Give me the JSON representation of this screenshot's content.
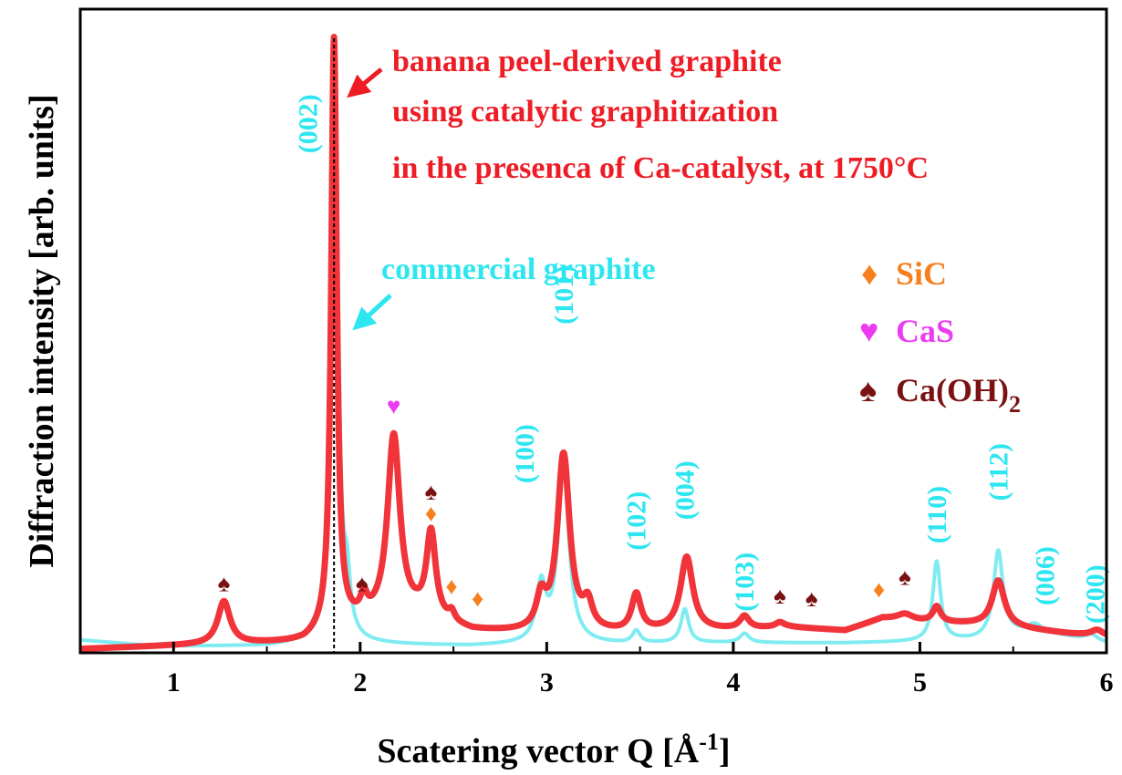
{
  "chart_data": {
    "type": "line",
    "xlabel": "Scatering vector Q [Å",
    "xlabel_sup": "-1",
    "xlabel_end": "]",
    "ylabel": "Diffraction intensity [arb. units]",
    "xlim": [
      0.5,
      6.0
    ],
    "ylim": [
      0,
      1.0
    ],
    "x_ticks": [
      "1",
      "2",
      "3",
      "4",
      "5",
      "6"
    ],
    "x_tick_values": [
      1,
      2,
      3,
      4,
      5,
      6
    ],
    "y_tick_labels": "none",
    "grid": false,
    "series": [
      {
        "name": "banana peel-derived graphite",
        "color": "#f0343a",
        "baseline": [
          [
            0.5,
            0.0
          ],
          [
            1.0,
            0.005
          ],
          [
            1.7,
            0.01
          ],
          [
            1.9,
            0.03
          ],
          [
            2.0,
            0.04
          ],
          [
            2.3,
            0.05
          ],
          [
            2.6,
            0.028
          ],
          [
            2.9,
            0.025
          ],
          [
            3.4,
            0.025
          ],
          [
            3.6,
            0.028
          ],
          [
            3.9,
            0.03
          ],
          [
            4.3,
            0.035
          ],
          [
            4.6,
            0.03
          ],
          [
            4.8,
            0.05
          ],
          [
            5.0,
            0.045
          ],
          [
            5.3,
            0.04
          ],
          [
            5.5,
            0.035
          ],
          [
            5.8,
            0.025
          ],
          [
            6.0,
            0.02
          ]
        ],
        "peaks": [
          {
            "x": 1.27,
            "height": 0.07,
            "width": 0.04
          },
          {
            "x": 1.86,
            "height": 0.97,
            "width": 0.018
          },
          {
            "x": 2.02,
            "height": 0.03,
            "width": 0.02
          },
          {
            "x": 2.18,
            "height": 0.3,
            "width": 0.04
          },
          {
            "x": 2.38,
            "height": 0.14,
            "width": 0.03
          },
          {
            "x": 2.49,
            "height": 0.015,
            "width": 0.02
          },
          {
            "x": 2.97,
            "height": 0.05,
            "width": 0.03
          },
          {
            "x": 3.09,
            "height": 0.29,
            "width": 0.04
          },
          {
            "x": 3.22,
            "height": 0.04,
            "width": 0.03
          },
          {
            "x": 3.48,
            "height": 0.06,
            "width": 0.03
          },
          {
            "x": 3.75,
            "height": 0.12,
            "width": 0.04
          },
          {
            "x": 4.06,
            "height": 0.02,
            "width": 0.03
          },
          {
            "x": 4.25,
            "height": 0.008,
            "width": 0.03
          },
          {
            "x": 4.92,
            "height": 0.01,
            "width": 0.05
          },
          {
            "x": 5.09,
            "height": 0.025,
            "width": 0.025
          },
          {
            "x": 5.42,
            "height": 0.075,
            "width": 0.04
          },
          {
            "x": 5.95,
            "height": 0.01,
            "width": 0.04
          }
        ]
      },
      {
        "name": "commercial graphite",
        "color": "#7fecf2",
        "baseline": [
          [
            0.5,
            0.015
          ],
          [
            0.9,
            0.005
          ],
          [
            1.5,
            0.005
          ],
          [
            1.7,
            0.01
          ],
          [
            2.0,
            0.008
          ],
          [
            2.6,
            0.005
          ],
          [
            3.0,
            0.008
          ],
          [
            3.4,
            0.008
          ],
          [
            3.8,
            0.01
          ],
          [
            4.2,
            0.01
          ],
          [
            4.6,
            0.01
          ],
          [
            5.0,
            0.012
          ],
          [
            5.3,
            0.015
          ],
          [
            5.6,
            0.03
          ],
          [
            5.8,
            0.02
          ],
          [
            6.0,
            0.01
          ]
        ],
        "peaks": [
          {
            "x": 1.865,
            "height": 0.97,
            "width": 0.02
          },
          {
            "x": 1.93,
            "height": 0.08,
            "width": 0.02
          },
          {
            "x": 2.97,
            "height": 0.09,
            "width": 0.03
          },
          {
            "x": 3.09,
            "height": 0.29,
            "width": 0.035
          },
          {
            "x": 3.48,
            "height": 0.02,
            "width": 0.025
          },
          {
            "x": 3.74,
            "height": 0.055,
            "width": 0.025
          },
          {
            "x": 4.06,
            "height": 0.015,
            "width": 0.03
          },
          {
            "x": 5.09,
            "height": 0.13,
            "width": 0.025
          },
          {
            "x": 5.42,
            "height": 0.14,
            "width": 0.03
          },
          {
            "x": 5.62,
            "height": 0.01,
            "width": 0.04
          },
          {
            "x": 5.92,
            "height": 0.01,
            "width": 0.04
          }
        ]
      }
    ],
    "reference_line_x": 1.86,
    "hkl_labels": [
      {
        "text": "(002)",
        "x": 1.72,
        "y": 0.86
      },
      {
        "text": "(100)",
        "x": 2.88,
        "y": 0.32
      },
      {
        "text": "(101)",
        "x": 3.09,
        "y": 0.58
      },
      {
        "text": "(102)",
        "x": 3.48,
        "y": 0.21
      },
      {
        "text": "(004)",
        "x": 3.74,
        "y": 0.26
      },
      {
        "text": "(103)",
        "x": 4.06,
        "y": 0.11
      },
      {
        "text": "(110)",
        "x": 5.09,
        "y": 0.22
      },
      {
        "text": "(112)",
        "x": 5.42,
        "y": 0.29
      },
      {
        "text": "(006)",
        "x": 5.67,
        "y": 0.12
      },
      {
        "text": "(200)",
        "x": 5.94,
        "y": 0.09
      }
    ],
    "phase_markers": [
      {
        "phase": "Ca(OH)2",
        "x": 1.27,
        "y": 0.095
      },
      {
        "phase": "Ca(OH)2",
        "x": 2.01,
        "y": 0.095
      },
      {
        "phase": "Ca(OH)2",
        "x": 2.38,
        "y": 0.245
      },
      {
        "phase": "Ca(OH)2",
        "x": 4.25,
        "y": 0.075
      },
      {
        "phase": "Ca(OH)2",
        "x": 4.42,
        "y": 0.07
      },
      {
        "phase": "Ca(OH)2",
        "x": 4.92,
        "y": 0.105
      },
      {
        "phase": "CaS",
        "x": 2.18,
        "y": 0.385
      },
      {
        "phase": "SiC",
        "x": 2.38,
        "y": 0.21
      },
      {
        "phase": "SiC",
        "x": 2.49,
        "y": 0.09
      },
      {
        "phase": "SiC",
        "x": 2.63,
        "y": 0.07
      },
      {
        "phase": "SiC",
        "x": 4.78,
        "y": 0.085
      }
    ],
    "annotations": {
      "red_lines": [
        "banana peel-derived graphite",
        "using catalytic graphitization",
        "in the presenca of Ca-catalyst, at 1750°C"
      ],
      "cyan_line": "commercial graphite"
    },
    "legend": {
      "placement": "right",
      "items": [
        {
          "symbol": "♦",
          "label": "SiC",
          "sub": "",
          "color": "#f7801e"
        },
        {
          "symbol": "♥",
          "label": "CaS",
          "sub": "",
          "color": "#ec3cf0"
        },
        {
          "symbol": "♠",
          "label": "Ca(OH)",
          "sub": "2",
          "color": "#7a1214"
        }
      ]
    }
  }
}
